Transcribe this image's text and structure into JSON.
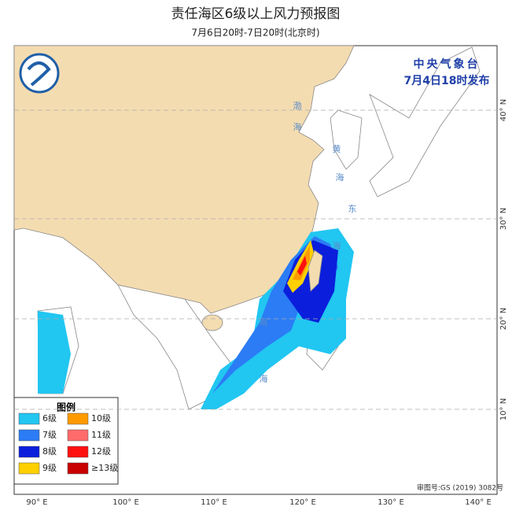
{
  "header": {
    "title": "责任海区6级以上风力预报图",
    "subtitle": "7月6日20时-7日20时(北京时)"
  },
  "issuer": {
    "agency": "中央气象台",
    "time": "7月4日18时发布"
  },
  "axes": {
    "longitudes": [
      "90° E",
      "100° E",
      "110° E",
      "120° E",
      "130° E",
      "140° E"
    ],
    "latitudes": [
      "40° N",
      "30° N",
      "20° N",
      "10° N"
    ]
  },
  "seas": [
    {
      "chars": [
        "渤",
        "海"
      ]
    },
    {
      "chars": [
        "黄",
        "海"
      ]
    },
    {
      "chars": [
        "东",
        "海"
      ]
    },
    {
      "chars": [
        "南",
        "海"
      ]
    }
  ],
  "legend": {
    "title": "图例",
    "items": [
      {
        "label": "6级",
        "color": "#21c6f1"
      },
      {
        "label": "10级",
        "color": "#ff9a00"
      },
      {
        "label": "7级",
        "color": "#2b7cf5"
      },
      {
        "label": "11级",
        "color": "#ff6b6b"
      },
      {
        "label": "8级",
        "color": "#0a1edc"
      },
      {
        "label": "12级",
        "color": "#ff1010"
      },
      {
        "label": "9级",
        "color": "#ffd000"
      },
      {
        "label": "≥13级",
        "color": "#c80000"
      }
    ]
  },
  "credit": "审图号:GS (2019) 3082号"
}
